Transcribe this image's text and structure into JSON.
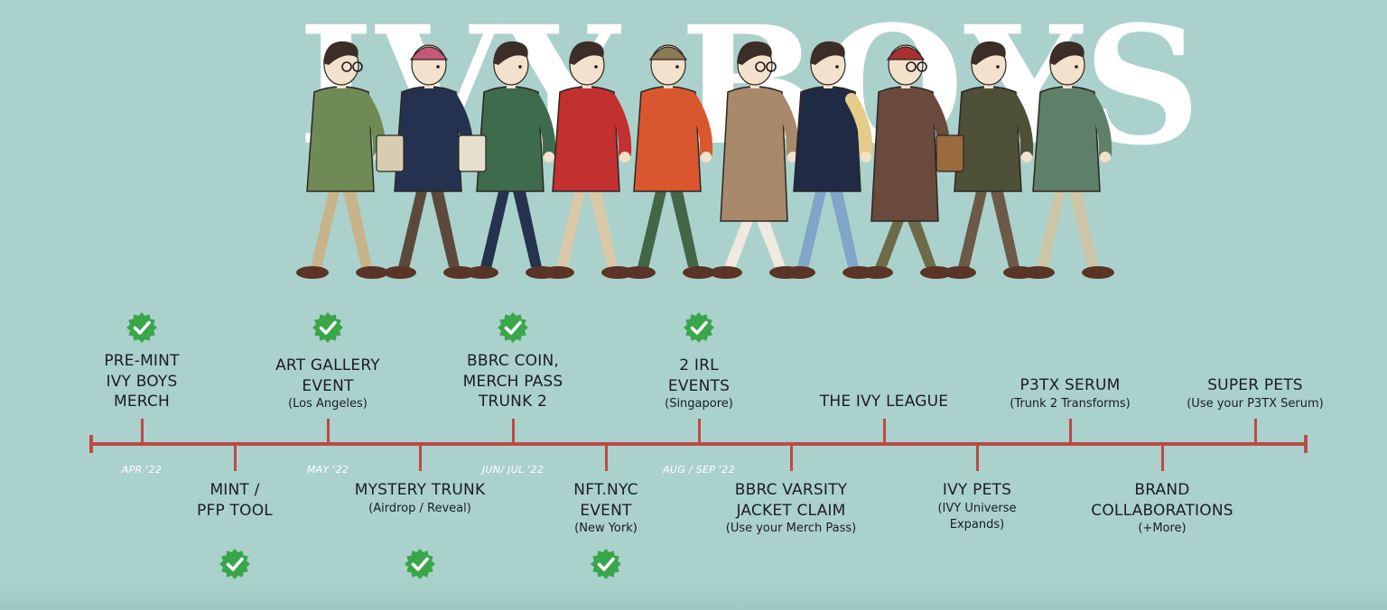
{
  "hero": {
    "title": "IVY BOYS"
  },
  "colors": {
    "background": "#abd1cc",
    "timeline": "#bd4a45",
    "check": "#3aa64a",
    "text": "#1a1d21",
    "date_text": "#ffffff"
  },
  "characters": [
    {
      "name": "glasses-boy-olive-jacket"
    },
    {
      "name": "pink-cap-boy-navy-blazer"
    },
    {
      "name": "green-jacket-tote-bag-boy"
    },
    {
      "name": "red-jacket-boy"
    },
    {
      "name": "orange-parka-beanie-boy"
    },
    {
      "name": "duffle-coat-glasses-boy"
    },
    {
      "name": "varsity-jacket-boy"
    },
    {
      "name": "red-beanie-tweed-coat-boy"
    },
    {
      "name": "olive-coat-briefcase-boy"
    },
    {
      "name": "green-parka-boy"
    }
  ],
  "timeline": {
    "milestones": [
      {
        "title": "PRE-MINT\nIVY BOYS\nMERCH",
        "sub": "",
        "side": "top",
        "done": true
      },
      {
        "title": "MINT /\nPFP TOOL",
        "sub": "",
        "side": "bottom",
        "done": true
      },
      {
        "title": "ART GALLERY\nEVENT",
        "sub": "(Los Angeles)",
        "side": "top",
        "done": true
      },
      {
        "title": "MYSTERY TRUNK",
        "sub": "(Airdrop / Reveal)",
        "side": "bottom",
        "done": true
      },
      {
        "title": "BBRC COIN,\nMERCH PASS\nTRUNK 2",
        "sub": "",
        "side": "top",
        "done": true
      },
      {
        "title": "NFT.NYC\nEVENT",
        "sub": "(New York)",
        "side": "bottom",
        "done": true
      },
      {
        "title": "2 IRL\nEVENTS",
        "sub": "(Singapore)",
        "side": "top",
        "done": true
      },
      {
        "title": "BBRC VARSITY\nJACKET CLAIM",
        "sub": "(Use your Merch Pass)",
        "side": "bottom",
        "done": false
      },
      {
        "title": "THE IVY LEAGUE",
        "sub": "",
        "side": "top",
        "done": false
      },
      {
        "title": "IVY PETS",
        "sub": "(IVY Universe\nExpands)",
        "side": "bottom",
        "done": false
      },
      {
        "title": "P3TX SERUM",
        "sub": "(Trunk 2 Transforms)",
        "side": "top",
        "done": false
      },
      {
        "title": "BRAND\nCOLLABORATIONS",
        "sub": "(+More)",
        "side": "bottom",
        "done": false
      },
      {
        "title": "SUPER PETS",
        "sub": "(Use your P3TX Serum)",
        "side": "top",
        "done": false
      }
    ],
    "dates": [
      {
        "label": "APR '22",
        "after": 0
      },
      {
        "label": "MAY '22",
        "after": 2
      },
      {
        "label": "JUN/ JUL '22",
        "after": 4
      },
      {
        "label": "AUG / SEP '22",
        "after": 6
      }
    ]
  }
}
